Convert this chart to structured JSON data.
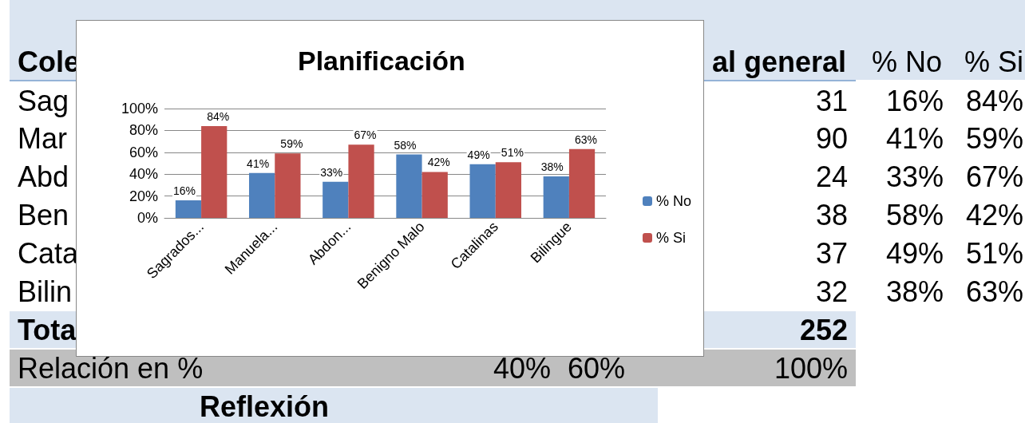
{
  "chart_data": {
    "type": "bar",
    "title": "Planificación",
    "categories": [
      "Sagrados...",
      "Manuela...",
      "Abdon...",
      "Benigno Malo",
      "Catalinas",
      "Bilingue"
    ],
    "series": [
      {
        "name": "% No",
        "color": "#4f81bd",
        "values": [
          16,
          41,
          33,
          58,
          49,
          38
        ],
        "value_labels": [
          "16%",
          "41%",
          "33%",
          "58%",
          "49%",
          "38%"
        ]
      },
      {
        "name": "% Si",
        "color": "#c0504d",
        "values": [
          84,
          59,
          67,
          42,
          51,
          63
        ],
        "value_labels": [
          "84%",
          "59%",
          "67%",
          "42%",
          "51%",
          "63%"
        ]
      }
    ],
    "ylim": [
      0,
      100
    ],
    "yticks": [
      {
        "value": 0,
        "label": "0%"
      },
      {
        "value": 20,
        "label": "20%"
      },
      {
        "value": 40,
        "label": "40%"
      },
      {
        "value": 60,
        "label": "60%"
      },
      {
        "value": 80,
        "label": "80%"
      },
      {
        "value": 100,
        "label": "100%"
      }
    ],
    "grid": "y",
    "legend": "right",
    "annotations": [
      "Cole",
      "al general",
      "% No",
      "% Si",
      "Sag",
      "Mar",
      "Abd",
      "Ben",
      "Cata",
      "Bilin",
      "31",
      "16%",
      "84%",
      "90",
      "41%",
      "59%",
      "24",
      "33%",
      "67%",
      "38",
      "58%",
      "42%",
      "37",
      "49%",
      "51%",
      "32",
      "38%",
      "63%",
      "Tota",
      "252",
      "Relación en %",
      "40%",
      "60%",
      "100%",
      "Reflexión"
    ]
  }
}
